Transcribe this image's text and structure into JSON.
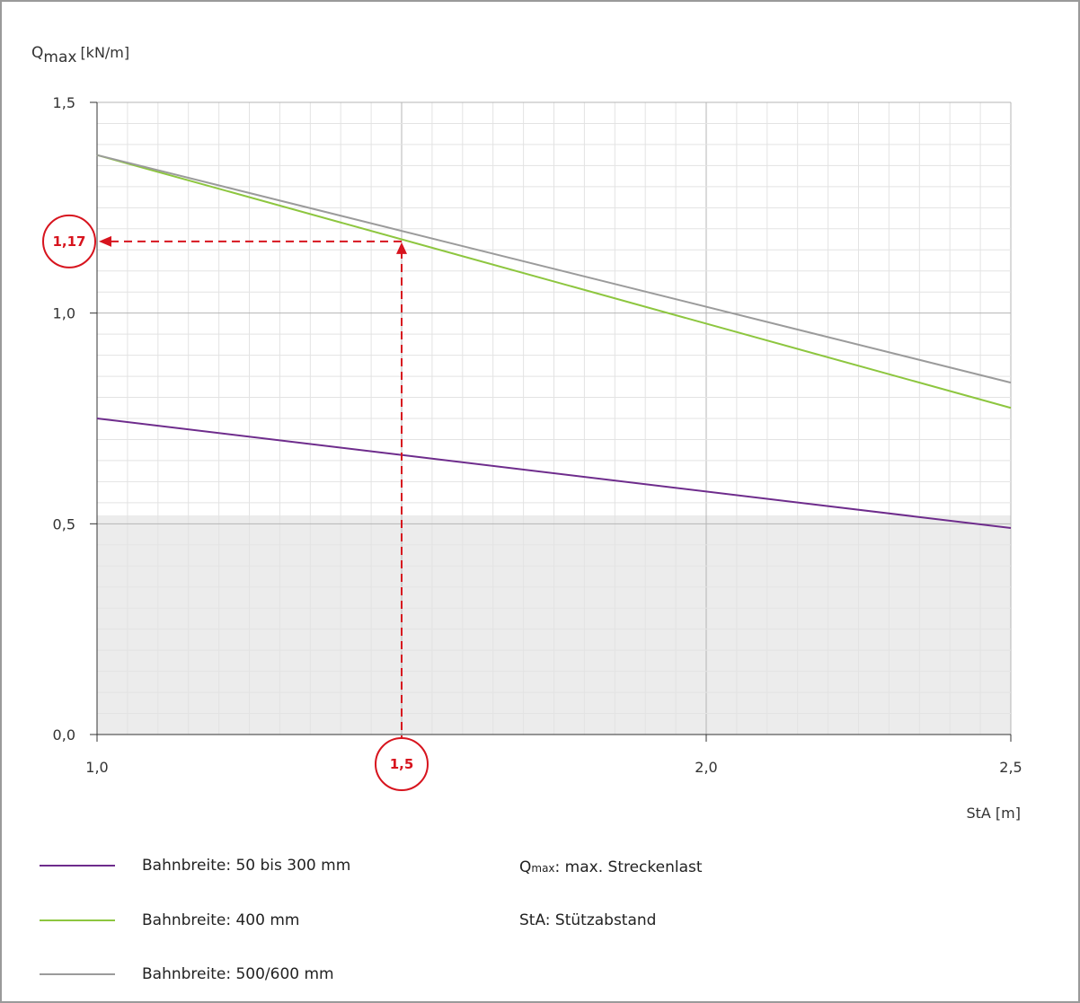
{
  "chart_data": {
    "type": "line",
    "ylabel_main": "Q",
    "ylabel_sub": "max",
    "ylabel_unit": "[kN/m]",
    "xlabel": "StA [m]",
    "xlim": [
      1.0,
      2.5
    ],
    "ylim": [
      0.0,
      1.5
    ],
    "x_ticks": [
      1.0,
      2.0,
      2.5
    ],
    "x_tick_labels": [
      "1,0",
      "2,0",
      "2,5"
    ],
    "y_ticks": [
      0.0,
      0.5,
      1.0,
      1.5
    ],
    "y_tick_labels": [
      "0,0",
      "0,5",
      "1,0",
      "1,5"
    ],
    "grid": true,
    "shaded_region": {
      "y_from": 0.0,
      "y_to": 0.52,
      "color": "#ececec"
    },
    "series": [
      {
        "name": "Bahnbreite: 50 bis 300 mm",
        "color": "#6e2c8c",
        "x": [
          1.0,
          2.5
        ],
        "y": [
          0.75,
          0.49
        ]
      },
      {
        "name": "Bahnbreite: 400 mm",
        "color": "#8dc63f",
        "x": [
          1.0,
          2.5
        ],
        "y": [
          1.375,
          0.775
        ]
      },
      {
        "name": "Bahnbreite: 500/600 mm",
        "color": "#9b9b9b",
        "x": [
          1.0,
          2.5
        ],
        "y": [
          1.375,
          0.835
        ]
      }
    ],
    "annotation": {
      "x_value": 1.5,
      "x_label": "1,5",
      "y_value": 1.17,
      "y_label": "1,17",
      "color": "#d7141e"
    },
    "notes": [
      {
        "symbol": "Q",
        "sub": "max",
        "text": ": max. Streckenlast"
      },
      {
        "symbol": "",
        "sub": "",
        "text": "StA: Stützabstand"
      }
    ]
  }
}
